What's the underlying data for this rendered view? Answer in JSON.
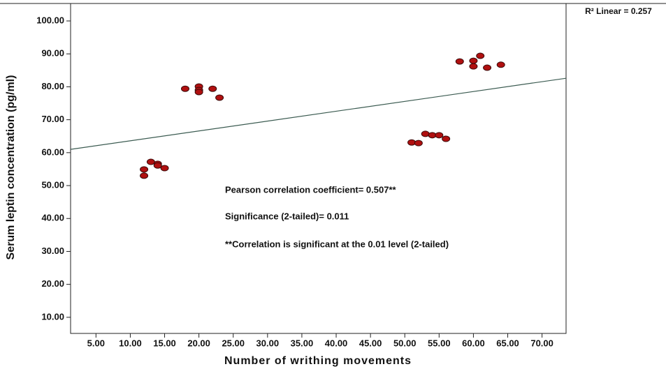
{
  "chart_data": {
    "type": "scatter",
    "x_label": "Number of writhing movements",
    "y_label": "Serum leptin concentration (pg/ml)",
    "r2_label": "R² Linear = 0.257",
    "annotations": [
      "Pearson correlation coefficient= 0.507**",
      "Significance (2-tailed)= 0.011",
      "**Correlation is significant at the 0.01 level (2-tailed)"
    ],
    "xlim": [
      1.3,
      73.5
    ],
    "ylim": [
      5.1,
      105.3
    ],
    "xticks": [
      {
        "value": 5,
        "label": "5.00"
      },
      {
        "value": 10,
        "label": "10.00"
      },
      {
        "value": 15,
        "label": "15.00"
      },
      {
        "value": 20,
        "label": "20.00"
      },
      {
        "value": 25,
        "label": "25.00"
      },
      {
        "value": 30,
        "label": "30.00"
      },
      {
        "value": 35,
        "label": "35.00"
      },
      {
        "value": 40,
        "label": "40.00"
      },
      {
        "value": 45,
        "label": "45.00"
      },
      {
        "value": 50,
        "label": "50.00"
      },
      {
        "value": 55,
        "label": "55.00"
      },
      {
        "value": 60,
        "label": "60.00"
      },
      {
        "value": 65,
        "label": "65.00"
      },
      {
        "value": 70,
        "label": "70.00"
      }
    ],
    "yticks": [
      {
        "value": 10,
        "label": "10.00"
      },
      {
        "value": 20,
        "label": "20.00"
      },
      {
        "value": 30,
        "label": "30.00"
      },
      {
        "value": 40,
        "label": "40.00"
      },
      {
        "value": 50,
        "label": "50.00"
      },
      {
        "value": 60,
        "label": "60.00"
      },
      {
        "value": 70,
        "label": "70.00"
      },
      {
        "value": 80,
        "label": "80.00"
      },
      {
        "value": 90,
        "label": "90.00"
      },
      {
        "value": 100,
        "label": "100.00"
      }
    ],
    "color": "#b01010",
    "x": [
      12,
      12,
      13,
      14,
      14,
      15,
      18,
      20,
      20,
      20,
      22,
      23,
      51,
      52,
      53,
      54,
      55,
      56,
      58,
      60,
      60,
      61,
      62,
      64
    ],
    "y": [
      54.9,
      53.0,
      57.2,
      56.6,
      56.1,
      55.3,
      79.4,
      80.1,
      79.0,
      78.4,
      79.4,
      76.7,
      63.1,
      62.9,
      65.7,
      65.3,
      65.3,
      64.2,
      87.7,
      87.9,
      86.2,
      89.4,
      85.8,
      86.7
    ],
    "fit_line": {
      "x": [
        1.3,
        73.5
      ],
      "y": [
        61.0,
        82.6
      ],
      "color": "#3a5a50"
    }
  }
}
